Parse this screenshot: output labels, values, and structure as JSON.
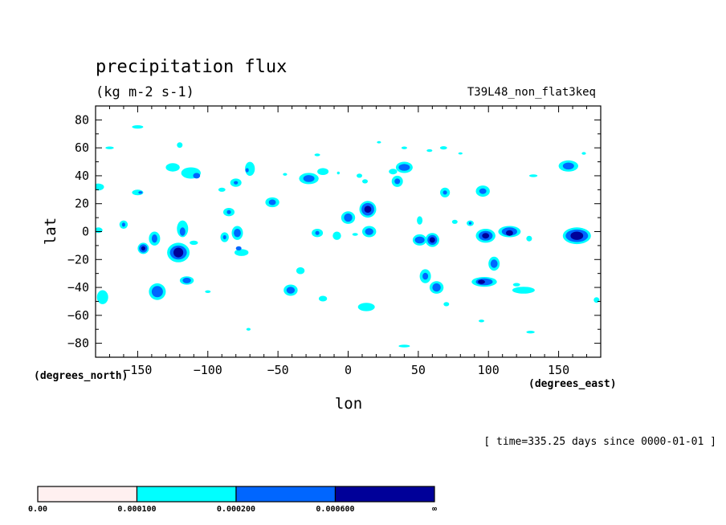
{
  "chart_data": {
    "type": "heatmap",
    "title": "precipitation flux",
    "units": "(kg m-2 s-1)",
    "experiment": "T39L48_non_flat3keq",
    "xlabel": "lon",
    "ylabel": "lat",
    "x_units": "(degrees_east)",
    "y_units": "(degrees_north)",
    "xlim": [
      -180,
      180
    ],
    "ylim": [
      -90,
      90
    ],
    "x_ticks": [
      -150,
      -100,
      -50,
      0,
      50,
      100,
      150
    ],
    "x_tick_labels": [
      "−150",
      "−100",
      "−50",
      "0",
      "50",
      "100",
      "150"
    ],
    "y_ticks": [
      80,
      60,
      40,
      20,
      0,
      -20,
      -40,
      -60,
      -80
    ],
    "y_tick_labels": [
      "80",
      "60",
      "40",
      "20",
      "0",
      "−20",
      "−40",
      "−60",
      "−80"
    ],
    "time_note": "[ time=335.25 days since 0000-01-01 ]",
    "levels": [
      0.0,
      0.0001,
      0.0002,
      0.0006
    ],
    "colorbar": {
      "colors": [
        "#fff0f0",
        "#00ffff",
        "#0066ff",
        "#000099"
      ],
      "labels": [
        "0.00",
        "0.000100",
        "0.000200",
        "0.000600",
        "∞"
      ]
    },
    "cells": [
      {
        "lon": -150,
        "lat": 75,
        "rx": 4,
        "ry": 1.2,
        "level": 1
      },
      {
        "lon": -170,
        "lat": 60,
        "rx": 3,
        "ry": 1,
        "level": 1
      },
      {
        "lon": -120,
        "lat": 62,
        "rx": 2,
        "ry": 2,
        "level": 1
      },
      {
        "lon": -112,
        "lat": 42,
        "rx": 7,
        "ry": 4,
        "level": 1
      },
      {
        "lon": -108,
        "lat": 40,
        "rx": 2.5,
        "ry": 2,
        "level": 2
      },
      {
        "lon": -125,
        "lat": 46,
        "rx": 5,
        "ry": 3,
        "level": 1
      },
      {
        "lon": -178,
        "lat": 32,
        "rx": 4,
        "ry": 2.5,
        "level": 1
      },
      {
        "lon": -150,
        "lat": 28,
        "rx": 4,
        "ry": 2,
        "level": 1
      },
      {
        "lon": -148,
        "lat": 28,
        "rx": 1.5,
        "ry": 1,
        "level": 2
      },
      {
        "lon": -160,
        "lat": 5,
        "rx": 3,
        "ry": 3,
        "level": 1
      },
      {
        "lon": -160,
        "lat": 5,
        "rx": 1.2,
        "ry": 1.5,
        "level": 2
      },
      {
        "lon": -178,
        "lat": 1,
        "rx": 3,
        "ry": 2,
        "level": 1
      },
      {
        "lon": -138,
        "lat": -5,
        "rx": 4,
        "ry": 5,
        "level": 1
      },
      {
        "lon": -138,
        "lat": -5,
        "rx": 2,
        "ry": 3,
        "level": 2
      },
      {
        "lon": -146,
        "lat": -12,
        "rx": 4,
        "ry": 4,
        "level": 1
      },
      {
        "lon": -146,
        "lat": -12,
        "rx": 3,
        "ry": 3,
        "level": 2
      },
      {
        "lon": -146,
        "lat": -12,
        "rx": 1.5,
        "ry": 1.5,
        "level": 3
      },
      {
        "lon": -121,
        "lat": -15,
        "rx": 8,
        "ry": 7,
        "level": 1
      },
      {
        "lon": -121,
        "lat": -15,
        "rx": 6,
        "ry": 5,
        "level": 2
      },
      {
        "lon": -121,
        "lat": -15,
        "rx": 3.5,
        "ry": 3.5,
        "level": 3
      },
      {
        "lon": -118,
        "lat": 2,
        "rx": 4,
        "ry": 6,
        "level": 1
      },
      {
        "lon": -118,
        "lat": 0,
        "rx": 2,
        "ry": 3,
        "level": 2
      },
      {
        "lon": -110,
        "lat": -8,
        "rx": 3,
        "ry": 1.5,
        "level": 1
      },
      {
        "lon": -115,
        "lat": -35,
        "rx": 5,
        "ry": 3,
        "level": 1
      },
      {
        "lon": -115,
        "lat": -35,
        "rx": 3,
        "ry": 2,
        "level": 2
      },
      {
        "lon": -136,
        "lat": -43,
        "rx": 6,
        "ry": 6,
        "level": 1
      },
      {
        "lon": -136,
        "lat": -43,
        "rx": 4,
        "ry": 4,
        "level": 2
      },
      {
        "lon": -175,
        "lat": -47,
        "rx": 4,
        "ry": 5,
        "level": 1
      },
      {
        "lon": -100,
        "lat": -43,
        "rx": 2,
        "ry": 1,
        "level": 1
      },
      {
        "lon": -90,
        "lat": 30,
        "rx": 2.5,
        "ry": 1.5,
        "level": 1
      },
      {
        "lon": -80,
        "lat": 35,
        "rx": 4,
        "ry": 3,
        "level": 1
      },
      {
        "lon": -80,
        "lat": 35,
        "rx": 1.5,
        "ry": 1.2,
        "level": 2
      },
      {
        "lon": -70,
        "lat": 45,
        "rx": 3.5,
        "ry": 5,
        "level": 1
      },
      {
        "lon": -72,
        "lat": 44,
        "rx": 1.2,
        "ry": 1.5,
        "level": 2
      },
      {
        "lon": -85,
        "lat": 14,
        "rx": 4,
        "ry": 3,
        "level": 1
      },
      {
        "lon": -85,
        "lat": 14,
        "rx": 1.5,
        "ry": 1.5,
        "level": 2
      },
      {
        "lon": -88,
        "lat": -4,
        "rx": 3,
        "ry": 3.5,
        "level": 1
      },
      {
        "lon": -88,
        "lat": -4,
        "rx": 1.2,
        "ry": 1.5,
        "level": 2
      },
      {
        "lon": -79,
        "lat": -1,
        "rx": 4,
        "ry": 5,
        "level": 1
      },
      {
        "lon": -79,
        "lat": -1,
        "rx": 2.5,
        "ry": 3,
        "level": 2
      },
      {
        "lon": -76,
        "lat": -15,
        "rx": 5,
        "ry": 2.5,
        "level": 1
      },
      {
        "lon": -78,
        "lat": -12,
        "rx": 2,
        "ry": 1.5,
        "level": 2
      },
      {
        "lon": -71,
        "lat": -70,
        "rx": 1.5,
        "ry": 1,
        "level": 1
      },
      {
        "lon": -54,
        "lat": 21,
        "rx": 5,
        "ry": 3.5,
        "level": 1
      },
      {
        "lon": -54,
        "lat": 21,
        "rx": 2.5,
        "ry": 2,
        "level": 2
      },
      {
        "lon": -28,
        "lat": 38,
        "rx": 7,
        "ry": 4,
        "level": 1
      },
      {
        "lon": -28,
        "lat": 38,
        "rx": 4,
        "ry": 2.5,
        "level": 2
      },
      {
        "lon": -18,
        "lat": 43,
        "rx": 4,
        "ry": 2.5,
        "level": 1
      },
      {
        "lon": -22,
        "lat": 55,
        "rx": 2,
        "ry": 1,
        "level": 1
      },
      {
        "lon": -45,
        "lat": 41,
        "rx": 1.5,
        "ry": 1,
        "level": 1
      },
      {
        "lon": -7,
        "lat": 42,
        "rx": 1,
        "ry": 1,
        "level": 1
      },
      {
        "lon": -22,
        "lat": -1,
        "rx": 4,
        "ry": 3,
        "level": 1
      },
      {
        "lon": -22,
        "lat": -1,
        "rx": 1.5,
        "ry": 1.5,
        "level": 2
      },
      {
        "lon": -8,
        "lat": -3,
        "rx": 3,
        "ry": 3,
        "level": 1
      },
      {
        "lon": 5,
        "lat": -2,
        "rx": 2,
        "ry": 1,
        "level": 1
      },
      {
        "lon": -34,
        "lat": -28,
        "rx": 3,
        "ry": 2.5,
        "level": 1
      },
      {
        "lon": -41,
        "lat": -42,
        "rx": 5,
        "ry": 4,
        "level": 1
      },
      {
        "lon": -41,
        "lat": -42,
        "rx": 3,
        "ry": 2.5,
        "level": 2
      },
      {
        "lon": -18,
        "lat": -48,
        "rx": 3,
        "ry": 2,
        "level": 1
      },
      {
        "lon": 0,
        "lat": 10,
        "rx": 5,
        "ry": 4.5,
        "level": 1
      },
      {
        "lon": 0,
        "lat": 10,
        "rx": 3,
        "ry": 3,
        "level": 2
      },
      {
        "lon": 14,
        "lat": 16,
        "rx": 6,
        "ry": 6,
        "level": 1
      },
      {
        "lon": 14,
        "lat": 16,
        "rx": 4.5,
        "ry": 4.5,
        "level": 2
      },
      {
        "lon": 14,
        "lat": 16,
        "rx": 2.5,
        "ry": 2.5,
        "level": 3
      },
      {
        "lon": 15,
        "lat": 0,
        "rx": 5,
        "ry": 4,
        "level": 1
      },
      {
        "lon": 15,
        "lat": 0,
        "rx": 3,
        "ry": 2.5,
        "level": 2
      },
      {
        "lon": 8,
        "lat": 40,
        "rx": 2,
        "ry": 1.5,
        "level": 1
      },
      {
        "lon": 12,
        "lat": 36,
        "rx": 2,
        "ry": 1.5,
        "level": 1
      },
      {
        "lon": 40,
        "lat": 46,
        "rx": 6,
        "ry": 4,
        "level": 1
      },
      {
        "lon": 40,
        "lat": 46,
        "rx": 4,
        "ry": 2.5,
        "level": 2
      },
      {
        "lon": 32,
        "lat": 43,
        "rx": 3,
        "ry": 2,
        "level": 1
      },
      {
        "lon": 35,
        "lat": 36,
        "rx": 4,
        "ry": 4,
        "level": 1
      },
      {
        "lon": 35,
        "lat": 36,
        "rx": 2,
        "ry": 2,
        "level": 2
      },
      {
        "lon": 22,
        "lat": 64,
        "rx": 1.5,
        "ry": 0.8,
        "level": 1
      },
      {
        "lon": 40,
        "lat": 60,
        "rx": 2,
        "ry": 1,
        "level": 1
      },
      {
        "lon": 58,
        "lat": 58,
        "rx": 2,
        "ry": 1,
        "level": 1
      },
      {
        "lon": 68,
        "lat": 60,
        "rx": 2.5,
        "ry": 1.2,
        "level": 1
      },
      {
        "lon": 80,
        "lat": 56,
        "rx": 1.5,
        "ry": 0.8,
        "level": 1
      },
      {
        "lon": 69,
        "lat": 28,
        "rx": 3.5,
        "ry": 3.5,
        "level": 1
      },
      {
        "lon": 69,
        "lat": 28,
        "rx": 1.5,
        "ry": 1.5,
        "level": 2
      },
      {
        "lon": 96,
        "lat": 29,
        "rx": 5,
        "ry": 4,
        "level": 1
      },
      {
        "lon": 96,
        "lat": 29,
        "rx": 2.5,
        "ry": 2,
        "level": 2
      },
      {
        "lon": 51,
        "lat": 8,
        "rx": 2,
        "ry": 3,
        "level": 1
      },
      {
        "lon": 76,
        "lat": 7,
        "rx": 2,
        "ry": 1.5,
        "level": 1
      },
      {
        "lon": 87,
        "lat": 6,
        "rx": 2.5,
        "ry": 2,
        "level": 1
      },
      {
        "lon": 87,
        "lat": 6,
        "rx": 1,
        "ry": 1,
        "level": 2
      },
      {
        "lon": 51,
        "lat": -6,
        "rx": 5,
        "ry": 4,
        "level": 1
      },
      {
        "lon": 51,
        "lat": -6,
        "rx": 3.5,
        "ry": 2.5,
        "level": 2
      },
      {
        "lon": 60,
        "lat": -6,
        "rx": 5,
        "ry": 5,
        "level": 1
      },
      {
        "lon": 60,
        "lat": -6,
        "rx": 3.5,
        "ry": 3.5,
        "level": 2
      },
      {
        "lon": 60,
        "lat": -6,
        "rx": 2,
        "ry": 2,
        "level": 3
      },
      {
        "lon": 98,
        "lat": -3,
        "rx": 7,
        "ry": 5,
        "level": 1
      },
      {
        "lon": 98,
        "lat": -3,
        "rx": 5,
        "ry": 3.5,
        "level": 2
      },
      {
        "lon": 98,
        "lat": -3,
        "rx": 2.5,
        "ry": 2,
        "level": 3
      },
      {
        "lon": 115,
        "lat": 0,
        "rx": 8,
        "ry": 4,
        "level": 1
      },
      {
        "lon": 115,
        "lat": 0,
        "rx": 5.5,
        "ry": 3,
        "level": 2
      },
      {
        "lon": 115,
        "lat": -1,
        "rx": 2.5,
        "ry": 2,
        "level": 3
      },
      {
        "lon": 129,
        "lat": -5,
        "rx": 2,
        "ry": 2,
        "level": 1
      },
      {
        "lon": 104,
        "lat": -23,
        "rx": 4,
        "ry": 5,
        "level": 1
      },
      {
        "lon": 104,
        "lat": -23,
        "rx": 2.5,
        "ry": 3,
        "level": 2
      },
      {
        "lon": 55,
        "lat": -32,
        "rx": 4,
        "ry": 5,
        "level": 1
      },
      {
        "lon": 55,
        "lat": -32,
        "rx": 2,
        "ry": 2.5,
        "level": 2
      },
      {
        "lon": 63,
        "lat": -40,
        "rx": 5,
        "ry": 4.5,
        "level": 1
      },
      {
        "lon": 63,
        "lat": -40,
        "rx": 3,
        "ry": 3,
        "level": 2
      },
      {
        "lon": 97,
        "lat": -36,
        "rx": 9,
        "ry": 3.5,
        "level": 1
      },
      {
        "lon": 97,
        "lat": -36,
        "rx": 6,
        "ry": 2.5,
        "level": 2
      },
      {
        "lon": 95,
        "lat": -36,
        "rx": 2.5,
        "ry": 1.5,
        "level": 3
      },
      {
        "lon": 70,
        "lat": -52,
        "rx": 2,
        "ry": 1.5,
        "level": 1
      },
      {
        "lon": 95,
        "lat": -64,
        "rx": 2,
        "ry": 1,
        "level": 1
      },
      {
        "lon": 125,
        "lat": -42,
        "rx": 8,
        "ry": 2.5,
        "level": 1
      },
      {
        "lon": 120,
        "lat": -38,
        "rx": 2.5,
        "ry": 1.2,
        "level": 1
      },
      {
        "lon": 13,
        "lat": -54,
        "rx": 6,
        "ry": 3,
        "level": 1
      },
      {
        "lon": 40,
        "lat": -82,
        "rx": 4,
        "ry": 1,
        "level": 1
      },
      {
        "lon": 130,
        "lat": -72,
        "rx": 3,
        "ry": 1,
        "level": 1
      },
      {
        "lon": 177,
        "lat": -49,
        "rx": 2,
        "ry": 2,
        "level": 1
      },
      {
        "lon": 163,
        "lat": -3,
        "rx": 10,
        "ry": 6,
        "level": 1
      },
      {
        "lon": 163,
        "lat": -3,
        "rx": 8,
        "ry": 4.5,
        "level": 2
      },
      {
        "lon": 163,
        "lat": -3,
        "rx": 4.5,
        "ry": 3,
        "level": 3
      },
      {
        "lon": 157,
        "lat": 47,
        "rx": 7,
        "ry": 4,
        "level": 1
      },
      {
        "lon": 157,
        "lat": 47,
        "rx": 4,
        "ry": 2.5,
        "level": 2
      },
      {
        "lon": 132,
        "lat": 40,
        "rx": 3,
        "ry": 1,
        "level": 1
      },
      {
        "lon": 168,
        "lat": 56,
        "rx": 1.5,
        "ry": 1,
        "level": 1
      }
    ]
  }
}
